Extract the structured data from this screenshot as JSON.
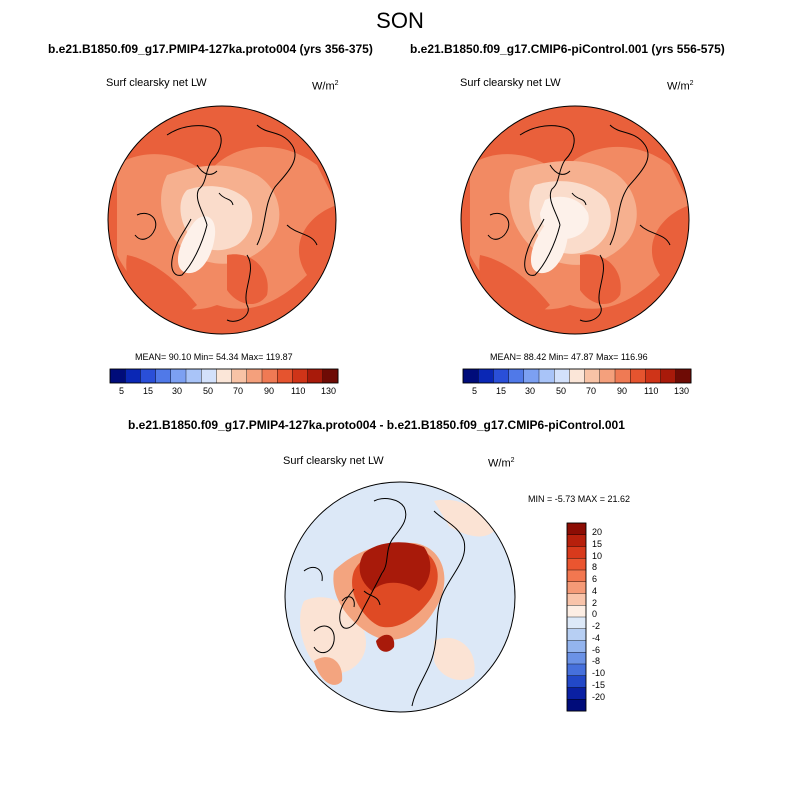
{
  "figure": {
    "title": "SON"
  },
  "panels": {
    "left": {
      "subtitle": "b.e21.B1850.f09_g17.PMIP4-127ka.proto004 (yrs 356-375)",
      "variable": "Surf clearsky net LW",
      "units_base": "W/m",
      "units_exp": "2",
      "stats": "MEAN=  90.10  Min=  54.34  Max= 119.87"
    },
    "right": {
      "subtitle": "b.e21.B1850.f09_g17.CMIP6-piControl.001 (yrs 556-575)",
      "variable": "Surf clearsky net LW",
      "units_base": "W/m",
      "units_exp": "2",
      "stats": "MEAN=  88.42  Min=  47.87  Max= 116.96"
    },
    "diff": {
      "subtitle": "b.e21.B1850.f09_g17.PMIP4-127ka.proto004 - b.e21.B1850.f09_g17.CMIP6-piControl.001",
      "variable": "Surf clearsky net LW",
      "units_base": "W/m",
      "units_exp": "2",
      "stats": "MIN =  -5.73 MAX =  21.62"
    }
  },
  "horizontal_colorbar": {
    "labels": [
      "5",
      "15",
      "30",
      "50",
      "70",
      "90",
      "110",
      "130"
    ],
    "colors": [
      "#000c7a",
      "#0a27b5",
      "#2a4fd8",
      "#5079e8",
      "#7ca0f2",
      "#a9c4f8",
      "#d3e1fb",
      "#fbe6d8",
      "#f8c3a6",
      "#f4a07c",
      "#ef7a54",
      "#e5542f",
      "#cf3418",
      "#a81a0a",
      "#6e0b05"
    ]
  },
  "vertical_colorbar": {
    "labels": [
      "20",
      "15",
      "10",
      "8",
      "6",
      "4",
      "2",
      "0",
      "-2",
      "-4",
      "-6",
      "-8",
      "-10",
      "-15",
      "-20"
    ],
    "colors": [
      "#8c0d04",
      "#b7200c",
      "#d83a1c",
      "#ea5530",
      "#f27750",
      "#f59a77",
      "#f9c4aa",
      "#fdeee4",
      "#dde9f8",
      "#b7cff3",
      "#93b4ee",
      "#6b92e6",
      "#4670dc",
      "#2248c8",
      "#0a20a3",
      "#000c7a"
    ]
  },
  "map_colors": {
    "abs_base": "#e9603b",
    "abs_mid": "#f28a63",
    "abs_light": "#f6b08f",
    "abs_pale": "#fadccb",
    "abs_white": "#fdf1ea",
    "diff_base": "#dce8f7",
    "diff_pale": "#fbe3d4",
    "diff_mid": "#f3a47f",
    "diff_strong": "#df4a24",
    "diff_dark": "#a81a0a"
  }
}
